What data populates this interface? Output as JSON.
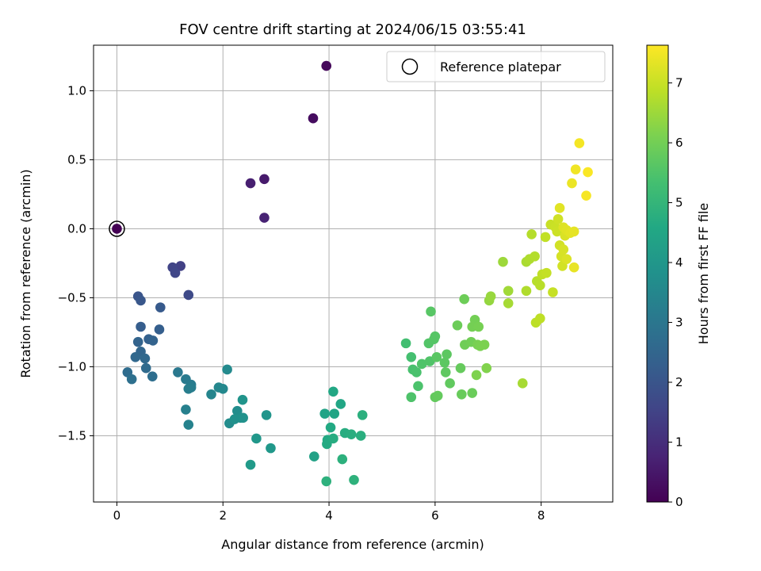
{
  "chart_data": {
    "type": "scatter",
    "title": "FOV centre drift starting at 2024/06/15 03:55:41",
    "xlabel": "Angular distance from reference (arcmin)",
    "ylabel": "Rotation from reference (arcmin)",
    "xlim": [
      -0.44,
      9.35
    ],
    "ylim": [
      -1.98,
      1.33
    ],
    "xticks": [
      0,
      2,
      4,
      6,
      8
    ],
    "yticks": [
      -1.5,
      -1.0,
      -0.5,
      0.0,
      0.5,
      1.0
    ],
    "xtick_labels": [
      "0",
      "2",
      "4",
      "6",
      "8"
    ],
    "ytick_labels": [
      "−1.5",
      "−1.0",
      "−0.5",
      "0.0",
      "0.5",
      "1.0"
    ],
    "grid": true,
    "legend": {
      "position": "upper-right",
      "entries": [
        "Reference platepar"
      ]
    },
    "reference_point": {
      "x": 0.0,
      "y": 0.0
    },
    "colorbar": {
      "label": "Hours from first FF file",
      "colormap": "viridis",
      "min": 0,
      "max": 7.63,
      "ticks": [
        0,
        1,
        2,
        3,
        4,
        5,
        6,
        7
      ],
      "tick_labels": [
        "0",
        "1",
        "2",
        "3",
        "4",
        "5",
        "6",
        "7"
      ]
    },
    "series": [
      {
        "points": [
          [
            0.0,
            0.0,
            0.0
          ],
          [
            3.95,
            1.18,
            0.15
          ],
          [
            3.7,
            0.8,
            0.25
          ],
          [
            2.78,
            0.36,
            0.55
          ],
          [
            2.52,
            0.33,
            0.65
          ],
          [
            2.78,
            0.08,
            0.75
          ],
          [
            1.2,
            -0.27,
            1.45
          ],
          [
            1.05,
            -0.28,
            1.55
          ],
          [
            1.1,
            -0.32,
            1.6
          ],
          [
            1.35,
            -0.48,
            1.7
          ],
          [
            0.4,
            -0.49,
            2.0
          ],
          [
            0.45,
            -0.52,
            2.05
          ],
          [
            0.82,
            -0.57,
            2.15
          ],
          [
            0.45,
            -0.71,
            2.25
          ],
          [
            0.8,
            -0.73,
            2.3
          ],
          [
            0.6,
            -0.8,
            2.35
          ],
          [
            0.68,
            -0.81,
            2.4
          ],
          [
            0.4,
            -0.82,
            2.45
          ],
          [
            0.45,
            -0.89,
            2.5
          ],
          [
            0.35,
            -0.93,
            2.55
          ],
          [
            0.53,
            -0.94,
            2.6
          ],
          [
            0.55,
            -1.01,
            2.65
          ],
          [
            0.2,
            -1.04,
            2.7
          ],
          [
            0.67,
            -1.07,
            2.75
          ],
          [
            0.28,
            -1.09,
            2.8
          ],
          [
            1.15,
            -1.04,
            3.05
          ],
          [
            1.3,
            -1.09,
            3.1
          ],
          [
            1.4,
            -1.13,
            3.15
          ],
          [
            1.4,
            -1.15,
            3.2
          ],
          [
            1.35,
            -1.16,
            3.25
          ],
          [
            1.3,
            -1.31,
            3.3
          ],
          [
            1.35,
            -1.42,
            3.35
          ],
          [
            1.78,
            -1.2,
            3.45
          ],
          [
            1.92,
            -1.15,
            3.5
          ],
          [
            2.0,
            -1.16,
            3.55
          ],
          [
            2.08,
            -1.02,
            3.6
          ],
          [
            2.12,
            -1.41,
            3.65
          ],
          [
            2.27,
            -1.32,
            3.7
          ],
          [
            2.33,
            -1.37,
            3.75
          ],
          [
            2.22,
            -1.38,
            3.8
          ],
          [
            2.38,
            -1.37,
            3.85
          ],
          [
            2.37,
            -1.24,
            3.9
          ],
          [
            2.82,
            -1.35,
            3.95
          ],
          [
            2.63,
            -1.52,
            4.0
          ],
          [
            2.9,
            -1.59,
            4.05
          ],
          [
            2.52,
            -1.71,
            4.1
          ],
          [
            3.72,
            -1.65,
            4.35
          ],
          [
            3.92,
            -1.34,
            4.4
          ],
          [
            4.1,
            -1.34,
            4.45
          ],
          [
            4.22,
            -1.27,
            4.5
          ],
          [
            4.08,
            -1.18,
            4.55
          ],
          [
            4.03,
            -1.44,
            4.6
          ],
          [
            3.97,
            -1.53,
            4.62
          ],
          [
            3.96,
            -1.56,
            4.65
          ],
          [
            4.08,
            -1.52,
            4.7
          ],
          [
            4.3,
            -1.48,
            4.72
          ],
          [
            4.42,
            -1.49,
            4.75
          ],
          [
            4.6,
            -1.5,
            4.78
          ],
          [
            4.63,
            -1.35,
            4.8
          ],
          [
            4.25,
            -1.67,
            4.83
          ],
          [
            3.95,
            -1.83,
            4.85
          ],
          [
            4.47,
            -1.82,
            4.88
          ],
          [
            5.45,
            -0.83,
            5.3
          ],
          [
            5.55,
            -0.93,
            5.35
          ],
          [
            5.58,
            -1.02,
            5.4
          ],
          [
            5.65,
            -1.04,
            5.42
          ],
          [
            5.68,
            -1.14,
            5.45
          ],
          [
            5.55,
            -1.22,
            5.48
          ],
          [
            5.75,
            -0.98,
            5.5
          ],
          [
            5.9,
            -0.96,
            5.52
          ],
          [
            5.88,
            -0.83,
            5.55
          ],
          [
            5.98,
            -0.8,
            5.58
          ],
          [
            6.0,
            -0.78,
            5.6
          ],
          [
            5.92,
            -0.6,
            5.62
          ],
          [
            6.03,
            -0.93,
            5.65
          ],
          [
            6.18,
            -0.97,
            5.68
          ],
          [
            6.22,
            -0.91,
            5.7
          ],
          [
            6.2,
            -1.04,
            5.72
          ],
          [
            6.28,
            -1.12,
            5.75
          ],
          [
            6.0,
            -1.22,
            5.78
          ],
          [
            6.05,
            -1.21,
            5.8
          ],
          [
            6.48,
            -1.01,
            5.82
          ],
          [
            6.5,
            -1.2,
            5.85
          ],
          [
            6.7,
            -1.19,
            5.88
          ],
          [
            6.42,
            -0.7,
            5.9
          ],
          [
            6.55,
            -0.51,
            5.92
          ],
          [
            6.56,
            -0.84,
            5.95
          ],
          [
            6.68,
            -0.82,
            5.98
          ],
          [
            6.75,
            -0.66,
            6.0
          ],
          [
            6.7,
            -0.71,
            6.02
          ],
          [
            6.82,
            -0.71,
            6.05
          ],
          [
            6.8,
            -0.84,
            6.08
          ],
          [
            6.85,
            -0.85,
            6.1
          ],
          [
            6.93,
            -0.84,
            6.12
          ],
          [
            6.78,
            -1.06,
            6.15
          ],
          [
            6.97,
            -1.01,
            6.18
          ],
          [
            7.02,
            -0.52,
            6.4
          ],
          [
            7.05,
            -0.49,
            6.45
          ],
          [
            7.28,
            -0.24,
            6.5
          ],
          [
            7.38,
            -0.45,
            6.55
          ],
          [
            7.38,
            -0.54,
            6.6
          ],
          [
            7.65,
            -1.12,
            6.62
          ],
          [
            7.72,
            -0.24,
            6.65
          ],
          [
            7.78,
            -0.22,
            6.7
          ],
          [
            7.72,
            -0.45,
            6.72
          ],
          [
            7.88,
            -0.2,
            6.75
          ],
          [
            7.82,
            -0.04,
            6.78
          ],
          [
            7.92,
            -0.38,
            6.8
          ],
          [
            7.98,
            -0.41,
            6.82
          ],
          [
            7.9,
            -0.68,
            6.85
          ],
          [
            7.98,
            -0.65,
            6.88
          ],
          [
            8.02,
            -0.33,
            6.9
          ],
          [
            8.08,
            -0.06,
            6.92
          ],
          [
            8.1,
            -0.32,
            6.95
          ],
          [
            8.22,
            -0.46,
            6.98
          ],
          [
            8.18,
            0.03,
            7.0
          ],
          [
            8.27,
            0.01,
            7.02
          ],
          [
            8.3,
            -0.02,
            7.05
          ],
          [
            8.32,
            0.07,
            7.08
          ],
          [
            8.35,
            -0.12,
            7.1
          ],
          [
            8.4,
            -0.27,
            7.12
          ],
          [
            8.38,
            -0.2,
            7.15
          ],
          [
            8.42,
            -0.15,
            7.18
          ],
          [
            8.45,
            -0.05,
            7.2
          ],
          [
            8.48,
            -0.22,
            7.22
          ],
          [
            8.42,
            0.01,
            7.25
          ],
          [
            8.48,
            -0.01,
            7.28
          ],
          [
            8.35,
            0.15,
            7.3
          ],
          [
            8.55,
            -0.03,
            7.32
          ],
          [
            8.62,
            -0.02,
            7.35
          ],
          [
            8.62,
            -0.28,
            7.38
          ],
          [
            8.58,
            0.33,
            7.42
          ],
          [
            8.65,
            0.43,
            7.48
          ],
          [
            8.72,
            0.62,
            7.52
          ],
          [
            8.85,
            0.24,
            7.55
          ],
          [
            8.88,
            0.41,
            7.6
          ]
        ]
      }
    ]
  }
}
